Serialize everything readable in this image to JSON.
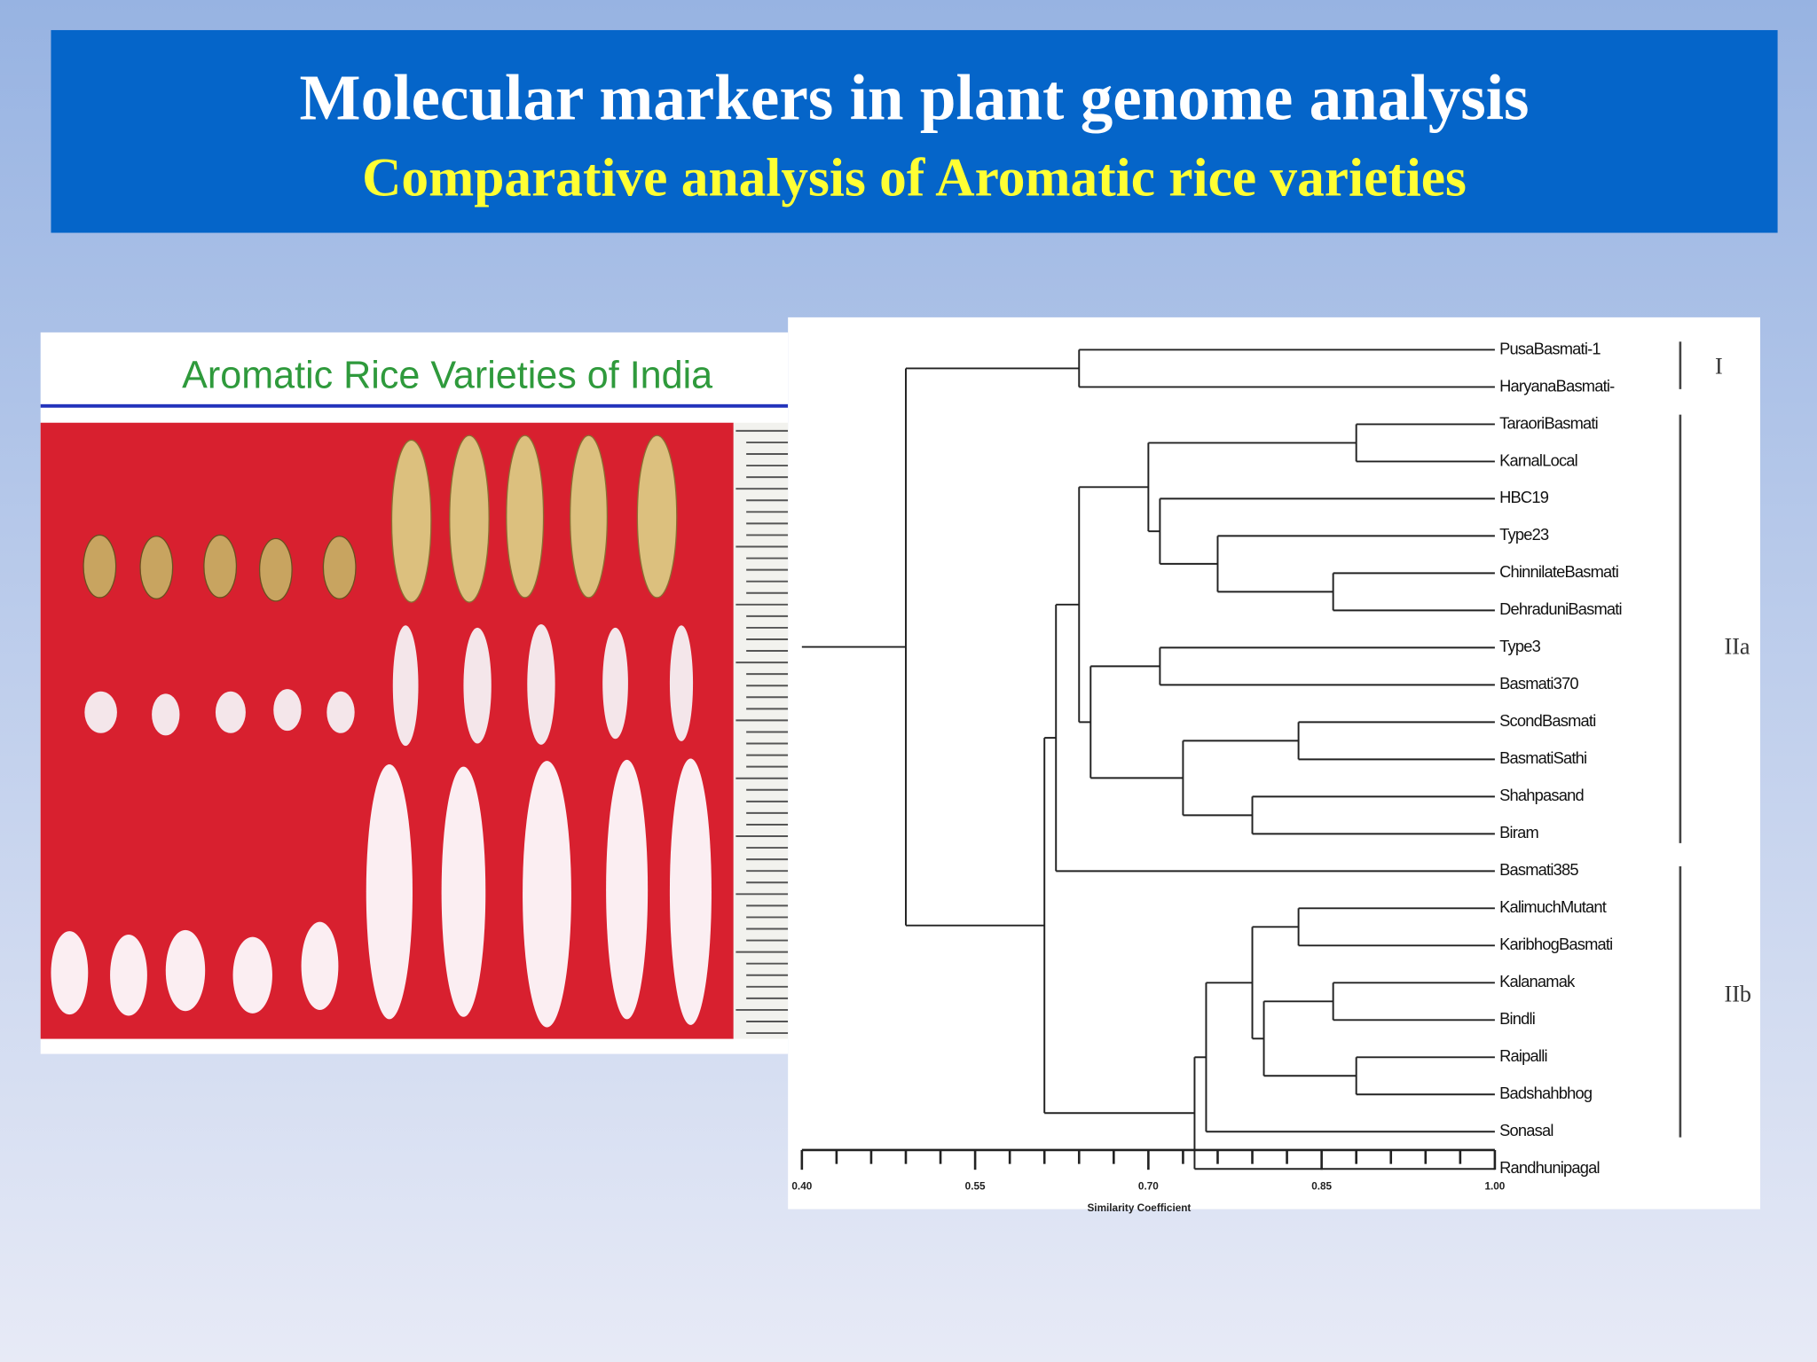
{
  "header": {
    "title": "Molecular markers in plant genome analysis",
    "subtitle": "Comparative analysis of Aromatic rice varieties"
  },
  "photo": {
    "caption": "Aromatic Rice Varieties of India"
  },
  "dendrogram": {
    "xlim": [
      0.4,
      1.0
    ],
    "xticks": [
      {
        "value": 0.4,
        "label": "0.40"
      },
      {
        "value": 0.55,
        "label": "0.55"
      },
      {
        "value": 0.7,
        "label": "0.70"
      },
      {
        "value": 0.85,
        "label": "0.85"
      },
      {
        "value": 1.0,
        "label": "1.00"
      }
    ],
    "xlabel": "Similarity Coefficient",
    "clusters": [
      "I",
      "IIa",
      "IIb"
    ],
    "tree": {
      "similarity": 0.49,
      "children": [
        {
          "similarity": 0.64,
          "children": [
            "PusaBasmati-1",
            "HaryanaBasmati-"
          ]
        },
        {
          "similarity": 0.61,
          "children": [
            {
              "similarity": 0.62,
              "children": [
                {
                  "similarity": 0.64,
                  "children": [
                    {
                      "similarity": 0.7,
                      "children": [
                        {
                          "similarity": 0.88,
                          "children": [
                            "TaraoriBasmati",
                            "KarnalLocal"
                          ]
                        },
                        {
                          "similarity": 0.71,
                          "children": [
                            "HBC19",
                            {
                              "similarity": 0.76,
                              "children": [
                                "Type23",
                                {
                                  "similarity": 0.86,
                                  "children": [
                                    "ChinnilateBasmati",
                                    "DehraduniBasmati"
                                  ]
                                }
                              ]
                            }
                          ]
                        }
                      ]
                    },
                    {
                      "similarity": 0.65,
                      "children": [
                        {
                          "similarity": 0.71,
                          "children": [
                            "Type3",
                            "Basmati370"
                          ]
                        },
                        {
                          "similarity": 0.73,
                          "children": [
                            {
                              "similarity": 0.83,
                              "children": [
                                "ScondBasmati",
                                "BasmatiSathi"
                              ]
                            },
                            {
                              "similarity": 0.79,
                              "children": [
                                "Shahpasand",
                                "Biram"
                              ]
                            }
                          ]
                        }
                      ]
                    }
                  ]
                },
                "Basmati385"
              ]
            },
            {
              "similarity": 0.74,
              "children": [
                {
                  "similarity": 0.75,
                  "children": [
                    {
                      "similarity": 0.79,
                      "children": [
                        {
                          "similarity": 0.83,
                          "children": [
                            "KalimuchMutant",
                            "KaribhogBasmati"
                          ]
                        },
                        {
                          "similarity": 0.8,
                          "children": [
                            {
                              "similarity": 0.86,
                              "children": [
                                "Kalanamak",
                                "Bindli"
                              ]
                            },
                            {
                              "similarity": 0.88,
                              "children": [
                                "Raipalli",
                                "Badshahbhog"
                              ]
                            }
                          ]
                        }
                      ]
                    },
                    "Sonasal"
                  ]
                },
                "Randhunipagal"
              ]
            }
          ]
        }
      ]
    }
  }
}
